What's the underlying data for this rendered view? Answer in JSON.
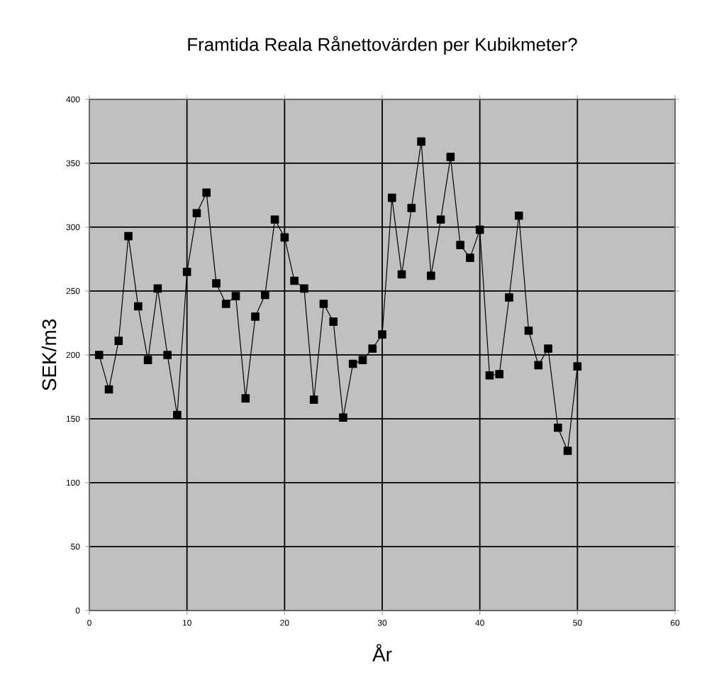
{
  "chart_data": {
    "type": "line",
    "title": "Framtida Reala Rånettovärden per Kubikmeter?",
    "xlabel": "År",
    "ylabel": "SEK/m3",
    "x": [
      1,
      2,
      3,
      4,
      5,
      6,
      7,
      8,
      9,
      10,
      11,
      12,
      13,
      14,
      15,
      16,
      17,
      18,
      19,
      20,
      21,
      22,
      23,
      24,
      25,
      26,
      27,
      28,
      29,
      30,
      31,
      32,
      33,
      34,
      35,
      36,
      37,
      38,
      39,
      40,
      41,
      42,
      43,
      44,
      45,
      46,
      47,
      48,
      49,
      50
    ],
    "series": [
      {
        "color": "#000000",
        "values": [
          200,
          173,
          211,
          293,
          238,
          196,
          252,
          200,
          153,
          265,
          311,
          327,
          256,
          240,
          246,
          166,
          230,
          247,
          306,
          292,
          258,
          252,
          165,
          240,
          226,
          151,
          193,
          196,
          205,
          216,
          323,
          263,
          315,
          367,
          262,
          306,
          355,
          286,
          276,
          298,
          184,
          185,
          245,
          309,
          219,
          192,
          205,
          143,
          125,
          191
        ]
      }
    ],
    "xlim": [
      0,
      60
    ],
    "xticks": [
      0,
      10,
      20,
      30,
      40,
      50,
      60
    ],
    "ylim": [
      0,
      400
    ],
    "yticks": [
      0,
      50,
      100,
      150,
      200,
      250,
      300,
      350,
      400
    ],
    "grid": true,
    "marker": "square",
    "line_style": "solid"
  }
}
